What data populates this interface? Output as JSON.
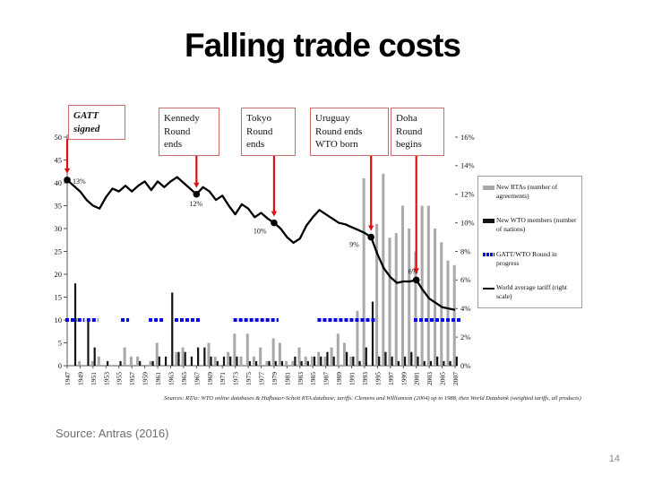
{
  "slide": {
    "title": "Falling trade costs",
    "source_caption": "Source: Antras (2016)",
    "page_number": "14"
  },
  "annotations": [
    {
      "text": "GATT\nsigned",
      "year": 1947
    },
    {
      "text": "Kennedy\nRound\nends",
      "year": 1967
    },
    {
      "text": "Tokyo\nRound\nends",
      "year": 1979
    },
    {
      "text": "Uruguay\nRound ends\nWTO born",
      "year": 1994
    },
    {
      "text": "Doha\nRound\nbegins",
      "year": 2001
    }
  ],
  "legend": {
    "items": [
      {
        "label": "New RTAs (number of agreements)",
        "marker": "gray-bar"
      },
      {
        "label": "New WTO members (number of nations)",
        "marker": "black-bar"
      },
      {
        "label": "GATT/WTO Round in progress",
        "marker": "blue-dashes"
      },
      {
        "label": "World average tariff (right scale)",
        "marker": "black-line"
      }
    ]
  },
  "colors": {
    "rta_bar": "#a9a9a9",
    "wto_bar": "#141414",
    "round_dash": "#0000ee",
    "tariff_line": "#000000",
    "arrow_red": "#dd1111",
    "annotation_border": "#cf6a6a",
    "axis": "#555555"
  },
  "chart_data": {
    "type": "bar",
    "subtype": "combo-bars-line",
    "left_axis": {
      "ticks": [
        0,
        5,
        10,
        15,
        20,
        25,
        30,
        35,
        40,
        45,
        50
      ],
      "min": 0,
      "max": 50
    },
    "right_axis": {
      "tick_labels": [
        "0%",
        "2%",
        "4%",
        "6%",
        "8%",
        "10%",
        "12%",
        "14%",
        "16%"
      ],
      "min": 0,
      "max": 16
    },
    "x_tick_years": [
      1947,
      1949,
      1951,
      1953,
      1955,
      1957,
      1959,
      1961,
      1963,
      1965,
      1967,
      1969,
      1971,
      1973,
      1975,
      1977,
      1979,
      1981,
      1983,
      1985,
      1987,
      1989,
      1991,
      1993,
      1995,
      1997,
      1999,
      2001,
      2003,
      2005,
      2007
    ],
    "series": [
      {
        "name": "New RTAs (number of agreements)",
        "type": "bar",
        "axis": "left",
        "color": "#a9a9a9",
        "year_start": 1948,
        "values": [
          0,
          1,
          0,
          1,
          2,
          0,
          0,
          0,
          4,
          2,
          2,
          0,
          1,
          5,
          0,
          0,
          3,
          4,
          0,
          0,
          0,
          5,
          2,
          0,
          3,
          7,
          2,
          7,
          2,
          4,
          1,
          6,
          5,
          1,
          1,
          4,
          2,
          2,
          3,
          2,
          4,
          7,
          5,
          2,
          12,
          41,
          0,
          31,
          42,
          28,
          29,
          35,
          30,
          25,
          35,
          35,
          30,
          27,
          23,
          22
        ]
      },
      {
        "name": "New WTO members (number of nations)",
        "type": "bar",
        "axis": "left",
        "color": "#141414",
        "year_start": 1948,
        "values": [
          18,
          0,
          10,
          4,
          0,
          1,
          0,
          1,
          0,
          0,
          1,
          0,
          1,
          2,
          2,
          16,
          3,
          3,
          2,
          4,
          4,
          2,
          1,
          2,
          2,
          2,
          0,
          1,
          1,
          0,
          1,
          1,
          1,
          0,
          2,
          1,
          1,
          2,
          2,
          3,
          2,
          0,
          3,
          2,
          1,
          4,
          14,
          2,
          3,
          2,
          1,
          2,
          3,
          2,
          1,
          1,
          2,
          1,
          1,
          2
        ]
      },
      {
        "name": "GATT/WTO Round in progress",
        "type": "dashed-intervals",
        "axis": "left",
        "color": "#0000ee",
        "level": 10,
        "intervals": [
          [
            1947,
            1948.2
          ],
          [
            1948.9,
            1949.4
          ],
          [
            1950.3,
            1951.5
          ],
          [
            1955.6,
            1956.3
          ],
          [
            1959.9,
            1961.8
          ],
          [
            1963.9,
            1967.4
          ],
          [
            1973,
            1979.4
          ],
          [
            1986,
            1994.4
          ],
          [
            2000.9,
            2007.7
          ]
        ]
      },
      {
        "name": "World average tariff (right scale)",
        "type": "line",
        "axis": "right",
        "color": "#000000",
        "year_start": 1947,
        "values": [
          13.0,
          12.6,
          12.2,
          11.6,
          11.2,
          11.0,
          11.8,
          12.4,
          12.2,
          12.6,
          12.2,
          12.6,
          12.9,
          12.3,
          12.9,
          12.5,
          12.9,
          13.2,
          12.8,
          12.4,
          12.0,
          12.5,
          12.2,
          11.6,
          11.9,
          11.2,
          10.6,
          11.3,
          11.0,
          10.4,
          10.7,
          10.3,
          10.0,
          9.6,
          9.0,
          8.6,
          8.9,
          9.8,
          10.4,
          10.9,
          10.6,
          10.3,
          10.0,
          9.9,
          9.7,
          9.5,
          9.3,
          9.0,
          7.8,
          6.8,
          6.2,
          5.8,
          5.9,
          5.9,
          6.0,
          5.3,
          4.7,
          4.4,
          4.1,
          4.0,
          3.9
        ]
      }
    ],
    "milestones": [
      {
        "year": 1947,
        "pct": 13,
        "label": "13%"
      },
      {
        "year": 1967,
        "pct": 12,
        "label": "12%"
      },
      {
        "year": 1979,
        "pct": 10,
        "label": "10%"
      },
      {
        "year": 1994,
        "pct": 9,
        "label": "9%"
      },
      {
        "year": 2001,
        "pct": 6,
        "label": "6%"
      }
    ],
    "footnote": "Sources: RTAs: WTO online databases & Hufbauer-Schott RTA database; tariffs: Clemens and Williamson (2004) up to 1988, then World Databank (weighted tariffs, all products)"
  }
}
